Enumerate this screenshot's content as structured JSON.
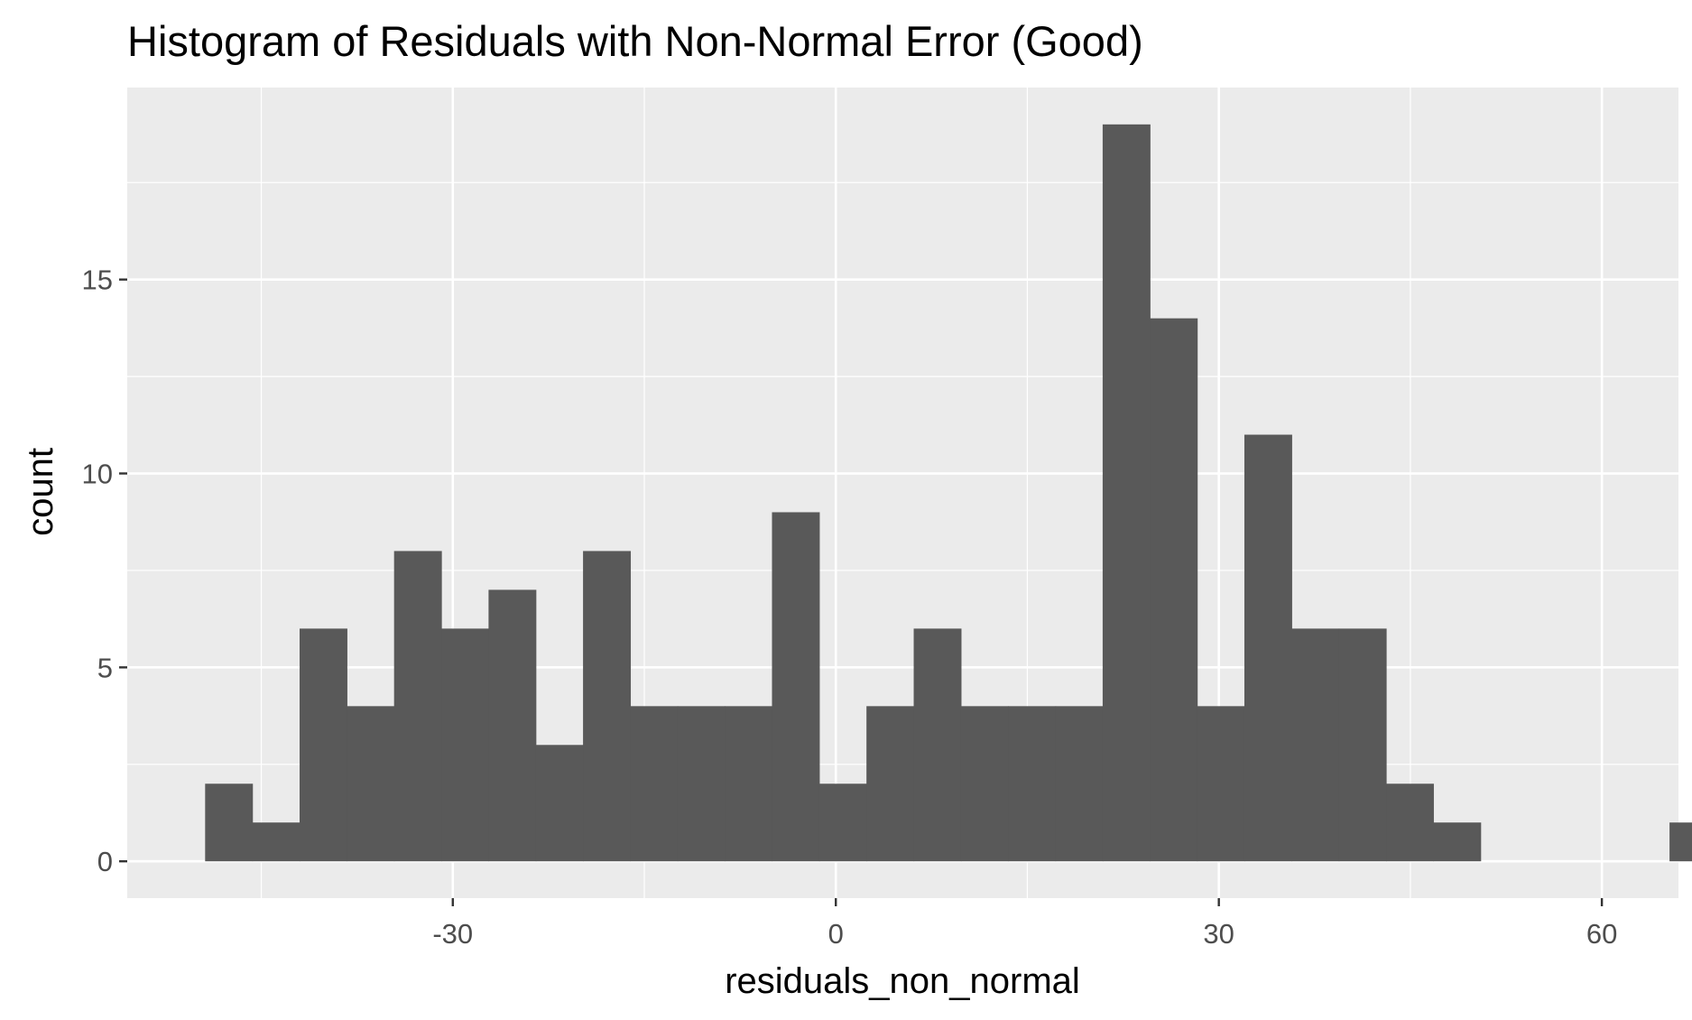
{
  "chart_data": {
    "type": "bar",
    "subtype": "histogram",
    "title": "Histogram of Residuals with Non-Normal Error (Good)",
    "xlabel": "residuals_non_normal",
    "ylabel": "count",
    "bin_width": 3.7,
    "bin_start": -49.4,
    "counts": [
      2,
      1,
      6,
      4,
      8,
      6,
      7,
      3,
      8,
      4,
      4,
      4,
      9,
      2,
      4,
      6,
      4,
      4,
      4,
      19,
      14,
      4,
      11,
      6,
      6,
      2,
      1,
      0,
      0,
      0,
      0,
      1
    ],
    "xlim": [
      -55.5,
      66.0
    ],
    "ylim": [
      -0.95,
      19.95
    ],
    "x_ticks": [
      -30,
      0,
      30,
      60
    ],
    "x_tick_labels": [
      "-30",
      "0",
      "30",
      "60"
    ],
    "y_ticks": [
      0,
      5,
      10,
      15
    ],
    "y_tick_labels": [
      "0",
      "5",
      "10",
      "15"
    ],
    "x_minor_gridlines": [
      -45,
      -15,
      15,
      45
    ],
    "y_minor_gridlines": [
      2.5,
      7.5,
      12.5,
      17.5
    ],
    "grid": true,
    "colors": {
      "panel_background": "#EBEBEB",
      "gridline": "#FFFFFF",
      "bar_fill": "#595959",
      "tick_label": "#4D4D4D",
      "axis_title": "#000000"
    }
  }
}
